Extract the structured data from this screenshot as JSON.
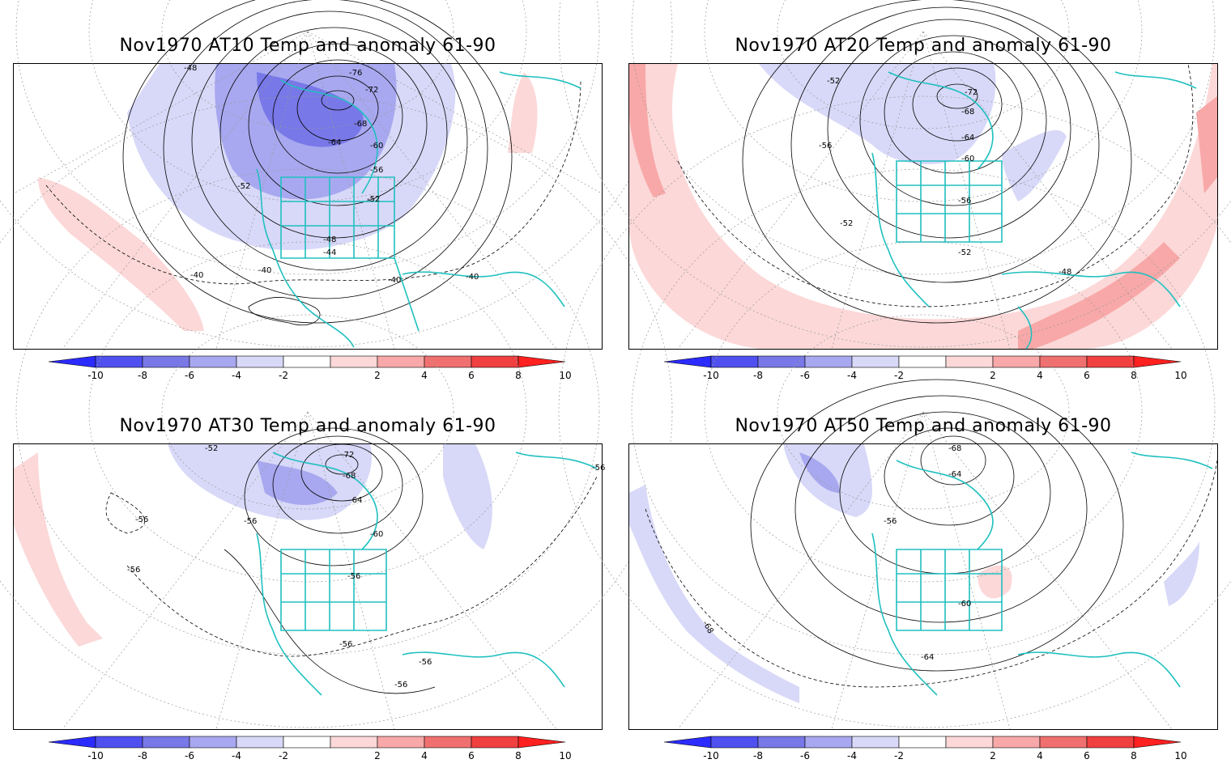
{
  "panels": [
    {
      "id": "at10",
      "title": "Nov1970 AT10 Temp and anomaly 61-90",
      "contour_labels": [
        "-48",
        "-76",
        "-72",
        "-68",
        "-64",
        "-60",
        "-56",
        "-52",
        "-52",
        "-48",
        "-44",
        "-40",
        "-40",
        "-40",
        "-40"
      ],
      "anomaly": "cold"
    },
    {
      "id": "at20",
      "title": "Nov1970 AT20 Temp and anomaly 61-90",
      "contour_labels": [
        "-52",
        "-72",
        "-68",
        "-64",
        "-60",
        "-56",
        "-56",
        "-52",
        "-52",
        "-48"
      ],
      "anomaly": "warm-ring"
    },
    {
      "id": "at30",
      "title": "Nov1970 AT30 Temp and anomaly 61-90",
      "contour_labels": [
        "-52",
        "-72",
        "-68",
        "-64",
        "-60",
        "-56",
        "-56",
        "-56",
        "-56",
        "-56",
        "-56",
        "-56",
        "-56"
      ],
      "anomaly": "mixed"
    },
    {
      "id": "at50",
      "title": "Nov1970 AT50 Temp and anomaly 61-90",
      "contour_labels": [
        "-68",
        "-64",
        "-56",
        "-60",
        "-64",
        "-68"
      ],
      "anomaly": "weak"
    }
  ],
  "colorbar": {
    "ticks": [
      "-10",
      "-8",
      "-6",
      "-4",
      "-2",
      "2",
      "4",
      "6",
      "8",
      "10"
    ],
    "colors": [
      "#2b2bff",
      "#5050f0",
      "#7878e8",
      "#a8a8f0",
      "#d8d8f8",
      "#ffffff",
      "#fcd8d8",
      "#f8a8a8",
      "#f07070",
      "#f04040",
      "#ff2020"
    ]
  },
  "map_colors": {
    "coast": "#20c0c0",
    "cold_light": "#d8d8f8",
    "cold_mid": "#a8a8f0",
    "cold_dark": "#7878e8",
    "warm_light": "#fcd8d8",
    "warm_mid": "#f8a8a8"
  }
}
